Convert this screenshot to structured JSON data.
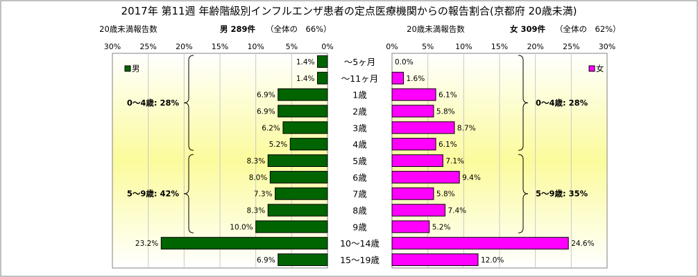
{
  "chart_data": {
    "type": "bar",
    "title": "2017年 第11週 年齢階級別インフルエンザ患者の定点医療機関からの報告割合(京都府 20歳未満)",
    "categories": [
      "～5ヶ月",
      "～11ヶ月",
      "1歳",
      "2歳",
      "3歳",
      "4歳",
      "5歳",
      "6歳",
      "7歳",
      "8歳",
      "9歳",
      "10～14歳",
      "15～19歳"
    ],
    "male": {
      "name": "男",
      "header": "男 289件",
      "share": "（全体の　66%）",
      "axis_caption": "20歳未満報告数",
      "values": [
        1.4,
        1.4,
        6.9,
        6.9,
        6.2,
        5.2,
        8.3,
        8.0,
        7.3,
        8.3,
        10.0,
        23.2,
        6.9
      ],
      "labels": [
        "1.4%",
        "1.4%",
        "6.9%",
        "6.9%",
        "6.2%",
        "5.2%",
        "8.3%",
        "8.0%",
        "7.3%",
        "8.3%",
        "10.0%",
        "23.2%",
        "6.9%"
      ],
      "ticks": [
        "30%",
        "25%",
        "20%",
        "15%",
        "10%",
        "5%",
        "0%"
      ],
      "groups": [
        {
          "label": "0～4歳: 28%",
          "from": 0,
          "to": 5
        },
        {
          "label": "5～9歳: 42%",
          "from": 6,
          "to": 10
        }
      ],
      "color": "#006400"
    },
    "female": {
      "name": "女",
      "header": "女 309件",
      "share": "（全体の　62%）",
      "axis_caption": "20歳未満報告数",
      "values": [
        0.0,
        1.6,
        6.1,
        5.8,
        8.7,
        6.1,
        7.1,
        9.4,
        5.8,
        7.4,
        5.2,
        24.6,
        12.0
      ],
      "labels": [
        "0.0%",
        "1.6%",
        "6.1%",
        "5.8%",
        "8.7%",
        "6.1%",
        "7.1%",
        "9.4%",
        "5.8%",
        "7.4%",
        "5.2%",
        "24.6%",
        "12.0%"
      ],
      "ticks": [
        "0%",
        "5%",
        "10%",
        "15%",
        "20%",
        "25%",
        "30%"
      ],
      "groups": [
        {
          "label": "0～4歳: 28%",
          "from": 0,
          "to": 5
        },
        {
          "label": "5～9歳: 35%",
          "from": 6,
          "to": 10
        }
      ],
      "color": "#ff00ff"
    },
    "xlim": [
      0,
      30
    ]
  }
}
